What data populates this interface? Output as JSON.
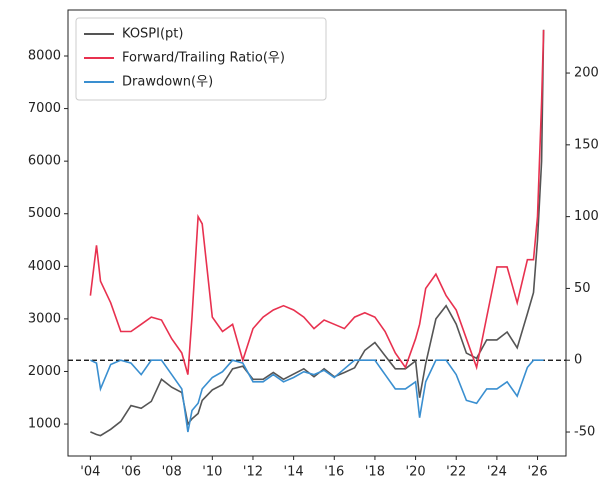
{
  "chart_data": {
    "type": "line",
    "x": [
      2004,
      2004.3,
      2004.5,
      2005,
      2005.5,
      2006,
      2006.5,
      2007,
      2007.5,
      2008,
      2008.5,
      2008.8,
      2009,
      2009.3,
      2009.5,
      2010,
      2010.5,
      2011,
      2011.5,
      2012,
      2012.5,
      2013,
      2013.5,
      2014,
      2014.5,
      2015,
      2015.5,
      2016,
      2016.5,
      2017,
      2017.5,
      2018,
      2018.5,
      2019,
      2019.5,
      2020,
      2020.2,
      2020.5,
      2021,
      2021.5,
      2022,
      2022.5,
      2023,
      2023.5,
      2024,
      2024.5,
      2025,
      2025.5,
      2025.8,
      2026,
      2026.2,
      2026.3
    ],
    "series": [
      {
        "name": "KOSPI(pt)",
        "color": "#555555",
        "values": [
          850,
          800,
          780,
          900,
          1050,
          1350,
          1300,
          1430,
          1850,
          1700,
          1600,
          1000,
          1100,
          1200,
          1450,
          1650,
          1750,
          2050,
          2100,
          1850,
          1850,
          1980,
          1850,
          1950,
          2050,
          1900,
          2050,
          1900,
          1980,
          2070,
          2400,
          2550,
          2300,
          2050,
          2050,
          2200,
          1500,
          2150,
          3000,
          3250,
          2900,
          2350,
          2250,
          2600,
          2600,
          2750,
          2450,
          3100,
          3500,
          4500,
          6000,
          8500
        ]
      },
      {
        "name": "Forward/Trailing Ratio(우)",
        "color": "#e8314f",
        "axis": "y2",
        "values": [
          45,
          80,
          55,
          40,
          20,
          20,
          25,
          30,
          28,
          15,
          5,
          -10,
          30,
          100,
          95,
          30,
          20,
          25,
          0,
          22,
          30,
          35,
          38,
          35,
          30,
          22,
          28,
          25,
          22,
          30,
          33,
          30,
          20,
          5,
          -5,
          15,
          25,
          50,
          60,
          45,
          35,
          15,
          -5,
          30,
          65,
          65,
          40,
          70,
          70,
          100,
          180,
          230
        ]
      },
      {
        "name": "Drawdown(우)",
        "color": "#3a8fd0",
        "axis": "y2",
        "values": [
          0,
          -2,
          -20,
          -3,
          0,
          -2,
          -10,
          0,
          0,
          -10,
          -20,
          -50,
          -35,
          -30,
          -20,
          -12,
          -8,
          0,
          -2,
          -15,
          -15,
          -10,
          -15,
          -12,
          -8,
          -10,
          -7,
          -12,
          -6,
          0,
          0,
          0,
          -10,
          -20,
          -20,
          -15,
          -40,
          -15,
          0,
          0,
          -10,
          -28,
          -30,
          -20,
          -20,
          -15,
          -25,
          -5,
          0,
          0,
          0,
          0
        ]
      }
    ],
    "xlim": [
      2002.9,
      2027.4
    ],
    "xticks": [
      {
        "value": 2004,
        "label": "'04"
      },
      {
        "value": 2006,
        "label": "'06"
      },
      {
        "value": 2008,
        "label": "'08"
      },
      {
        "value": 2010,
        "label": "'10"
      },
      {
        "value": 2012,
        "label": "'12"
      },
      {
        "value": 2014,
        "label": "'14"
      },
      {
        "value": 2016,
        "label": "'16"
      },
      {
        "value": 2018,
        "label": "'18"
      },
      {
        "value": 2020,
        "label": "'20"
      },
      {
        "value": 2022,
        "label": "'22"
      },
      {
        "value": 2024,
        "label": "'24"
      },
      {
        "value": 2026,
        "label": "'26"
      }
    ],
    "ylim": [
      392,
      8875
    ],
    "yticks": [
      1000,
      2000,
      3000,
      4000,
      5000,
      6000,
      7000,
      8000
    ],
    "y2lim": [
      -66.7,
      243.9
    ],
    "y2ticks": [
      -50,
      0,
      50,
      100,
      150,
      200
    ],
    "hline": {
      "value": 0,
      "axis": "y2"
    },
    "legend": "upper left"
  }
}
